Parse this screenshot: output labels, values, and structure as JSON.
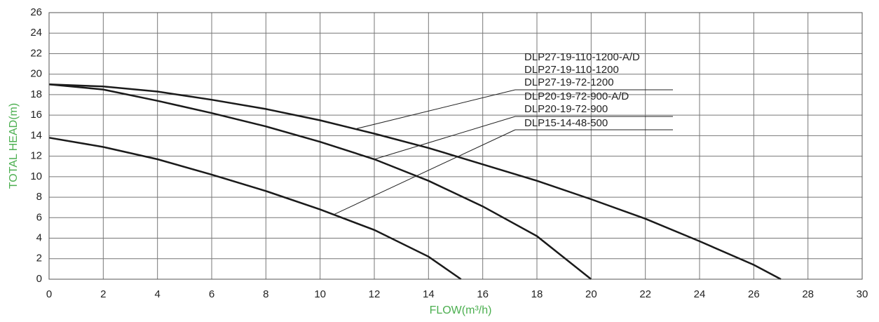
{
  "chart_data": {
    "type": "line",
    "x_label": "FLOW(m³/h)",
    "y_label": "TOTAL HEAD(m)",
    "xlim": [
      0,
      30
    ],
    "xticks": [
      0,
      2,
      4,
      6,
      8,
      10,
      12,
      14,
      16,
      18,
      20,
      22,
      24,
      26,
      28,
      30
    ],
    "ylim": [
      0,
      26
    ],
    "yticks": [
      0,
      2,
      4,
      6,
      8,
      10,
      12,
      14,
      16,
      18,
      20,
      22,
      24,
      26
    ],
    "grid": true,
    "color": "#1a1a1a",
    "series": [
      {
        "labels": [
          "DLP27-19-110-1200-A/D",
          "DLP27-19-110-1200",
          "DLP27-19-72-1200"
        ],
        "x": [
          0,
          2,
          4,
          6,
          8,
          10,
          12,
          14,
          16,
          18,
          20,
          22,
          24,
          26,
          27
        ],
        "values": [
          19,
          18.8,
          18.3,
          17.5,
          16.6,
          15.5,
          14.2,
          12.8,
          11.2,
          9.6,
          7.8,
          5.9,
          3.7,
          1.4,
          0
        ]
      },
      {
        "labels": [
          "DLP20-19-72-900-A/D",
          "DLP20-19-72-900"
        ],
        "x": [
          0,
          2,
          4,
          6,
          8,
          10,
          12,
          14,
          16,
          18,
          20
        ],
        "values": [
          19,
          18.5,
          17.4,
          16.2,
          14.9,
          13.4,
          11.7,
          9.6,
          7.1,
          4.2,
          0
        ]
      },
      {
        "labels": [
          "DLP15-14-48-500"
        ],
        "x": [
          0,
          2,
          4,
          6,
          8,
          10,
          12,
          14,
          15.2
        ],
        "values": [
          13.8,
          12.9,
          11.7,
          10.2,
          8.6,
          6.8,
          4.8,
          2.2,
          0
        ]
      }
    ]
  }
}
